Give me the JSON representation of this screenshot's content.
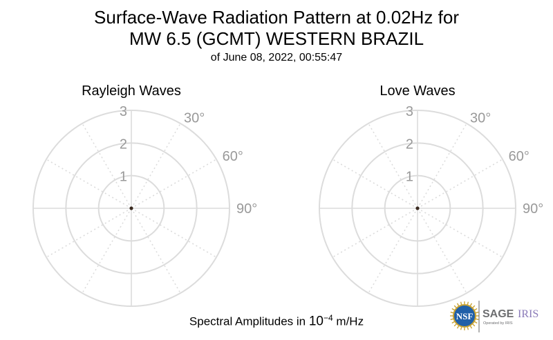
{
  "title": {
    "line1": "Surface-Wave Radiation Pattern at 0.02Hz for",
    "line2": "MW 6.5 (GCMT) WESTERN BRAZIL",
    "line3": "of June 08, 2022, 00:55:47"
  },
  "footer": {
    "prefix": "Spectral Amplitudes in",
    "base": "10",
    "exponent": "−4",
    "unit": "m/Hz"
  },
  "logos": {
    "nsf": "NSF",
    "sage": "SAGE",
    "iris": "IRIS",
    "operated": "Operated by IRIS"
  },
  "chart_data": [
    {
      "type": "polar",
      "title": "Rayleigh Waves",
      "radial_ticks": [
        "1",
        "2",
        "3"
      ],
      "radial_range": [
        0,
        3
      ],
      "angle_labels": [
        "30°",
        "60°",
        "90°"
      ],
      "grid": true,
      "values": []
    },
    {
      "type": "polar",
      "title": "Love Waves",
      "radial_ticks": [
        "1",
        "2",
        "3"
      ],
      "radial_range": [
        0,
        3
      ],
      "angle_labels": [
        "30°",
        "60°",
        "90°"
      ],
      "grid": true,
      "values": []
    }
  ],
  "colors": {
    "grid": "#dcdcdc",
    "tick_text": "#999999",
    "center_dot": "#3a2a20",
    "nsf_blue": "#1f5fa8",
    "nsf_gold": "#c8a232",
    "sage_gray": "#6d6e70",
    "iris_purple": "#8a7ab8"
  }
}
